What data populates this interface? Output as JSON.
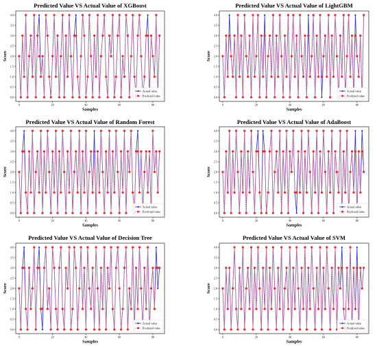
{
  "series_colors": {
    "actual": "#1f2bd6",
    "predicted": "#e8262e",
    "predicted_line": "#f07a80"
  },
  "chart_data": [
    {
      "type": "line",
      "title": "Predicted Value VS Actual Value of XGBoost",
      "xlabel": "Samples",
      "ylabel": "Score",
      "xlim": [
        -2,
        87
      ],
      "ylim": [
        -0.2,
        4.2
      ],
      "xticks": [
        0,
        20,
        40,
        60,
        80
      ],
      "yticks": [
        "0.0",
        "0.5",
        "1.0",
        "1.5",
        "2.0",
        "2.5",
        "3.0",
        "3.5",
        "4.0"
      ],
      "legend_position": "lower-right",
      "series": [
        {
          "name": "Actual value",
          "values": [
            2,
            0,
            3,
            1,
            4,
            0,
            2,
            3,
            1,
            4,
            0,
            3,
            4,
            1,
            2,
            0,
            4,
            3,
            1,
            0,
            2,
            4,
            1,
            3,
            0,
            2,
            4,
            0,
            3,
            1,
            4,
            2,
            0,
            3,
            4,
            1,
            0,
            2,
            4,
            3,
            0,
            1,
            4,
            2,
            0,
            3,
            1,
            4,
            0,
            2,
            3,
            4,
            1,
            0,
            3,
            2,
            4,
            0,
            1,
            3,
            4,
            0,
            2,
            1,
            4,
            3,
            0,
            2,
            4,
            1,
            0,
            3,
            4,
            2,
            0,
            1,
            3,
            4,
            0,
            3,
            2,
            1,
            4,
            0,
            3
          ]
        },
        {
          "name": "Predicted value",
          "values": [
            2,
            0,
            3,
            1,
            4,
            0,
            2,
            3,
            1,
            4,
            0,
            3,
            2,
            1,
            2,
            0,
            4,
            3,
            1,
            0,
            2,
            4,
            1,
            3,
            0,
            2,
            4,
            0,
            3,
            1,
            4,
            2,
            0,
            3,
            3,
            1,
            0,
            2,
            4,
            3,
            0,
            1,
            4,
            2,
            0,
            3,
            1,
            4,
            0,
            2,
            3,
            4,
            1,
            0,
            3,
            2,
            4,
            0,
            1,
            3,
            4,
            0,
            2,
            1,
            4,
            3,
            0,
            2,
            4,
            1,
            0,
            3,
            4,
            2,
            0,
            1,
            3,
            3,
            0,
            3,
            2,
            1,
            4,
            0,
            3
          ]
        }
      ]
    },
    {
      "type": "line",
      "title": "Predicted Value VS Actual Value of LightGBM",
      "xlabel": "Samples",
      "ylabel": "Score",
      "xlim": [
        -2,
        87
      ],
      "ylim": [
        -0.2,
        4.2
      ],
      "xticks": [
        0,
        20,
        40,
        60,
        80
      ],
      "yticks": [
        "0.0",
        "0.5",
        "1.0",
        "1.5",
        "2.0",
        "2.5",
        "3.0",
        "3.5",
        "4.0"
      ],
      "legend_position": "lower-right",
      "series": [
        {
          "name": "Actual value",
          "values": [
            2,
            0,
            3,
            1,
            4,
            2,
            1,
            3,
            0,
            4,
            1,
            3,
            0,
            4,
            2,
            1,
            3,
            0,
            4,
            1,
            2,
            4,
            0,
            3,
            1,
            4,
            0,
            2,
            3,
            1,
            4,
            0,
            3,
            1,
            4,
            2,
            0,
            3,
            1,
            4,
            0,
            2,
            4,
            1,
            3,
            0,
            4,
            2,
            1,
            3,
            0,
            4,
            1,
            2,
            4,
            0,
            3,
            1,
            4,
            0,
            2,
            3,
            1,
            4,
            0,
            3,
            1,
            4,
            2,
            0,
            3,
            1,
            4,
            0,
            2,
            4,
            1,
            3,
            0,
            4,
            2,
            1,
            3,
            0,
            4
          ]
        },
        {
          "name": "Predicted value",
          "values": [
            2,
            0,
            3,
            1,
            3,
            2,
            1,
            3,
            0,
            4,
            1,
            3,
            0,
            4,
            2,
            1,
            3,
            0,
            4,
            1,
            2,
            4,
            0,
            3,
            1,
            3,
            0,
            2,
            3,
            1,
            4,
            0,
            3,
            1,
            4,
            2,
            0,
            3,
            1,
            4,
            0,
            2,
            4,
            1,
            3,
            0,
            4,
            2,
            1,
            3,
            0,
            3,
            1,
            2,
            4,
            0,
            3,
            1,
            4,
            1,
            2,
            3,
            1,
            4,
            0,
            3,
            1,
            4,
            2,
            0,
            3,
            1,
            4,
            0,
            2,
            4,
            1,
            3,
            0,
            3,
            2,
            1,
            3,
            0,
            4
          ]
        }
      ]
    },
    {
      "type": "line",
      "title": "Predicted Value VS Actual Value of Random Forest",
      "xlabel": "Samples",
      "ylabel": "Score",
      "xlim": [
        -2,
        87
      ],
      "ylim": [
        -0.2,
        4.2
      ],
      "xticks": [
        0,
        20,
        40,
        60,
        80
      ],
      "yticks": [
        "0.0",
        "0.5",
        "1.0",
        "1.5",
        "2.0",
        "2.5",
        "3.0",
        "3.5",
        "4.0"
      ],
      "legend_position": "lower-right",
      "series": [
        {
          "name": "Actual value",
          "values": [
            2,
            0,
            3,
            4,
            1,
            0,
            3,
            1,
            4,
            0,
            2,
            3,
            1,
            4,
            0,
            3,
            1,
            4,
            2,
            0,
            3,
            1,
            4,
            0,
            3,
            1,
            4,
            2,
            0,
            3,
            1,
            4,
            0,
            2,
            3,
            1,
            4,
            0,
            3,
            1,
            4,
            0,
            2,
            3,
            1,
            4,
            0,
            3,
            1,
            4,
            2,
            0,
            3,
            1,
            4,
            0,
            3,
            1,
            4,
            2,
            0,
            3,
            1,
            4,
            0,
            3,
            2,
            4,
            1,
            0,
            3,
            4,
            1,
            3,
            0,
            2,
            3,
            1,
            3,
            0,
            4,
            2,
            3,
            1,
            3
          ]
        },
        {
          "name": "Predicted value",
          "values": [
            2,
            0,
            3,
            3,
            1,
            0,
            3,
            1,
            4,
            0,
            2,
            3,
            1,
            4,
            0,
            3,
            1,
            4,
            2,
            0,
            3,
            1,
            4,
            0,
            3,
            1,
            4,
            2,
            0,
            3,
            1,
            4,
            0,
            2,
            3,
            1,
            4,
            0,
            3,
            1,
            4,
            0,
            2,
            3,
            1,
            3,
            0,
            3,
            1,
            4,
            2,
            0,
            3,
            1,
            4,
            0,
            3,
            1,
            4,
            2,
            0,
            3,
            1,
            4,
            0,
            3,
            2,
            4,
            1,
            0,
            3,
            3,
            1,
            3,
            0,
            2,
            3,
            1,
            3,
            0,
            4,
            2,
            3,
            1,
            3
          ]
        }
      ]
    },
    {
      "type": "line",
      "title": "Predicted Value VS Actual Value of AdaBoost",
      "xlabel": "Samples",
      "ylabel": "Score",
      "xlim": [
        -2,
        87
      ],
      "ylim": [
        -0.2,
        4.2
      ],
      "xticks": [
        0,
        20,
        40,
        60,
        80
      ],
      "yticks": [
        "0.0",
        "0.5",
        "1.0",
        "1.5",
        "2.0",
        "2.5",
        "3.0",
        "3.5",
        "4.0"
      ],
      "legend_position": "lower-right",
      "series": [
        {
          "name": "Actual value",
          "values": [
            2,
            0,
            3,
            1,
            4,
            0,
            3,
            1,
            4,
            2,
            0,
            3,
            1,
            4,
            0,
            3,
            1,
            4,
            2,
            0,
            3,
            4,
            1,
            0,
            4,
            3,
            0,
            1,
            3,
            4,
            0,
            2,
            3,
            1,
            4,
            0,
            3,
            1,
            4,
            0,
            3,
            2,
            4,
            1,
            0,
            3,
            1,
            4,
            0,
            3,
            1,
            4,
            2,
            0,
            3,
            1,
            4,
            0,
            3,
            1,
            4,
            2,
            0,
            3,
            1,
            4,
            0,
            3,
            2,
            1,
            4,
            0,
            3,
            1,
            4,
            0,
            2,
            3,
            1,
            4,
            0,
            3,
            1,
            4,
            2
          ]
        },
        {
          "name": "Predicted value",
          "values": [
            2,
            0,
            3,
            1,
            4,
            0,
            3,
            1,
            4,
            2,
            0,
            3,
            1,
            4,
            0,
            3,
            1,
            4,
            2,
            0,
            3,
            3,
            1,
            0,
            3,
            3,
            0,
            1,
            3,
            4,
            0,
            2,
            3,
            1,
            4,
            0,
            3,
            1,
            4,
            0,
            3,
            2,
            4,
            1,
            1,
            3,
            1,
            4,
            0,
            3,
            1,
            4,
            2,
            0,
            3,
            1,
            4,
            0,
            3,
            1,
            4,
            2,
            0,
            3,
            1,
            4,
            0,
            3,
            2,
            1,
            4,
            0,
            3,
            1,
            4,
            0,
            2,
            3,
            1,
            3,
            0,
            3,
            1,
            3,
            2
          ]
        }
      ]
    },
    {
      "type": "line",
      "title": "Predicted Value VS Actual Value of Decision Tree",
      "xlabel": "Samples",
      "ylabel": "Score",
      "xlim": [
        -2,
        87
      ],
      "ylim": [
        -0.2,
        4.2
      ],
      "xticks": [
        0,
        20,
        40,
        60,
        80
      ],
      "yticks": [
        "0.0",
        "0.5",
        "1.0",
        "1.5",
        "2.0",
        "2.5",
        "3.0",
        "3.5",
        "4.0"
      ],
      "legend_position": "lower-right",
      "series": [
        {
          "name": "Actual value",
          "values": [
            2,
            0,
            3,
            4,
            1,
            0,
            3,
            1,
            2,
            4,
            0,
            3,
            4,
            1,
            0,
            3,
            4,
            1,
            2,
            0,
            4,
            3,
            1,
            0,
            3,
            4,
            1,
            0,
            3,
            2,
            4,
            0,
            1,
            4,
            3,
            0,
            2,
            4,
            1,
            3,
            0,
            4,
            2,
            1,
            3,
            0,
            4,
            2,
            0,
            3,
            1,
            4,
            0,
            3,
            2,
            4,
            1,
            0,
            3,
            4,
            2,
            0,
            1,
            3,
            4,
            0,
            2,
            1,
            4,
            0,
            3,
            1,
            4,
            2,
            0,
            3,
            1,
            4,
            0,
            2,
            3,
            1,
            4,
            2,
            3
          ]
        },
        {
          "name": "Predicted value",
          "values": [
            2,
            0,
            3,
            3,
            1,
            0,
            3,
            1,
            2,
            4,
            0,
            3,
            3,
            1,
            1,
            3,
            4,
            1,
            2,
            0,
            4,
            3,
            1,
            0,
            3,
            4,
            1,
            0,
            3,
            2,
            4,
            0,
            1,
            4,
            3,
            0,
            2,
            4,
            1,
            3,
            0,
            4,
            2,
            1,
            3,
            0,
            4,
            2,
            0,
            3,
            1,
            4,
            0,
            3,
            2,
            4,
            1,
            0,
            3,
            4,
            2,
            0,
            1,
            3,
            4,
            0,
            2,
            1,
            4,
            0,
            3,
            1,
            4,
            2,
            0,
            3,
            1,
            4,
            0,
            2,
            3,
            1,
            3,
            3,
            3
          ]
        }
      ]
    },
    {
      "type": "line",
      "title": "Predicted Value VS Actual Value of SVM",
      "xlabel": "Samples",
      "ylabel": "Score",
      "xlim": [
        -2,
        87
      ],
      "ylim": [
        -0.2,
        4.2
      ],
      "xticks": [
        0,
        20,
        40,
        60,
        80
      ],
      "yticks": [
        "0.0",
        "0.5",
        "1.0",
        "1.5",
        "2.0",
        "2.5",
        "3.0",
        "3.5",
        "4.0"
      ],
      "legend_position": "lower-right",
      "series": [
        {
          "name": "Actual value",
          "values": [
            2,
            0,
            3,
            1,
            3,
            0,
            2,
            4,
            1,
            0,
            3,
            1,
            4,
            0,
            2,
            3,
            1,
            4,
            0,
            3,
            1,
            4,
            2,
            0,
            3,
            1,
            4,
            0,
            3,
            1,
            4,
            2,
            0,
            3,
            1,
            4,
            0,
            2,
            3,
            1,
            4,
            0,
            3,
            1,
            4,
            2,
            0,
            3,
            1,
            4,
            0,
            3,
            1,
            4,
            2,
            0,
            3,
            1,
            4,
            0,
            3,
            1,
            4,
            2,
            0,
            3,
            1,
            4,
            0,
            3,
            2,
            4,
            1,
            0,
            3,
            1,
            4,
            0,
            3,
            1,
            4,
            0,
            3,
            2,
            3
          ]
        },
        {
          "name": "Predicted value",
          "values": [
            2,
            0,
            3,
            1,
            3,
            0,
            2,
            4,
            1,
            0,
            3,
            1,
            4,
            0,
            2,
            3,
            1,
            4,
            0,
            3,
            1,
            4,
            2,
            0,
            3,
            1,
            4,
            0,
            3,
            1,
            4,
            2,
            0,
            3,
            1,
            4,
            0,
            2,
            3,
            1,
            4,
            0,
            3,
            1,
            4,
            2,
            0,
            3,
            1,
            4,
            0,
            3,
            1,
            4,
            2,
            0,
            3,
            1,
            4,
            0,
            3,
            1,
            4,
            2,
            0,
            3,
            1,
            4,
            0,
            3,
            2,
            3,
            1,
            0,
            3,
            1,
            4,
            0,
            3,
            1,
            3,
            0,
            3,
            2,
            3
          ]
        }
      ]
    }
  ]
}
